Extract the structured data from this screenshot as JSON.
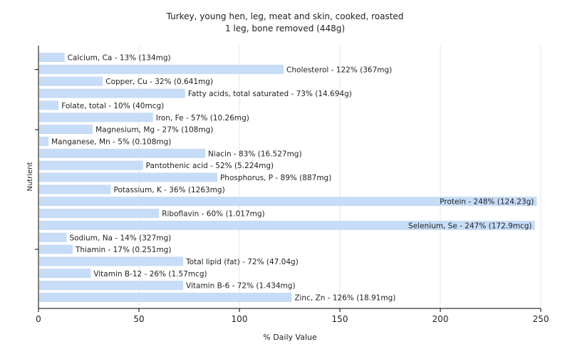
{
  "chart_data": {
    "type": "bar",
    "orientation": "horizontal",
    "title": "Turkey, young hen, leg, meat and skin, cooked, roasted",
    "subtitle": "1 leg, bone removed (448g)",
    "xlabel": "% Daily Value",
    "ylabel": "Nutrient",
    "xlim": [
      0,
      250
    ],
    "xticks": [
      0,
      50,
      100,
      150,
      200,
      250
    ],
    "grid": true,
    "bar_color": "#c6dcf7",
    "categories": [
      "Calcium, Ca",
      "Cholesterol",
      "Copper, Cu",
      "Fatty acids, total saturated",
      "Folate, total",
      "Iron, Fe",
      "Magnesium, Mg",
      "Manganese, Mn",
      "Niacin",
      "Pantothenic acid",
      "Phosphorus, P",
      "Potassium, K",
      "Protein",
      "Riboflavin",
      "Selenium, Se",
      "Sodium, Na",
      "Thiamin",
      "Total lipid (fat)",
      "Vitamin B-12",
      "Vitamin B-6",
      "Zinc, Zn"
    ],
    "values": [
      13,
      122,
      32,
      73,
      10,
      57,
      27,
      5,
      83,
      52,
      89,
      36,
      248,
      60,
      247,
      14,
      17,
      72,
      26,
      72,
      126
    ],
    "labels": [
      "Calcium, Ca - 13% (134mg)",
      "Cholesterol - 122% (367mg)",
      "Copper, Cu - 32% (0.641mg)",
      "Fatty acids, total saturated - 73% (14.694g)",
      "Folate, total - 10% (40mcg)",
      "Iron, Fe - 57% (10.26mg)",
      "Magnesium, Mg - 27% (108mg)",
      "Manganese, Mn - 5% (0.108mg)",
      "Niacin - 83% (16.527mg)",
      "Pantothenic acid - 52% (5.224mg)",
      "Phosphorus, P - 89% (887mg)",
      "Potassium, K - 36% (1263mg)",
      "Protein - 248% (124.23g)",
      "Riboflavin - 60% (1.017mg)",
      "Selenium, Se - 247% (172.9mcg)",
      "Sodium, Na - 14% (327mg)",
      "Thiamin - 17% (0.251mg)",
      "Total lipid (fat) - 72% (47.04g)",
      "Vitamin B-12 - 26% (1.57mcg)",
      "Vitamin B-6 - 72% (1.434mg)",
      "Zinc, Zn - 126% (18.91mg)"
    ]
  }
}
